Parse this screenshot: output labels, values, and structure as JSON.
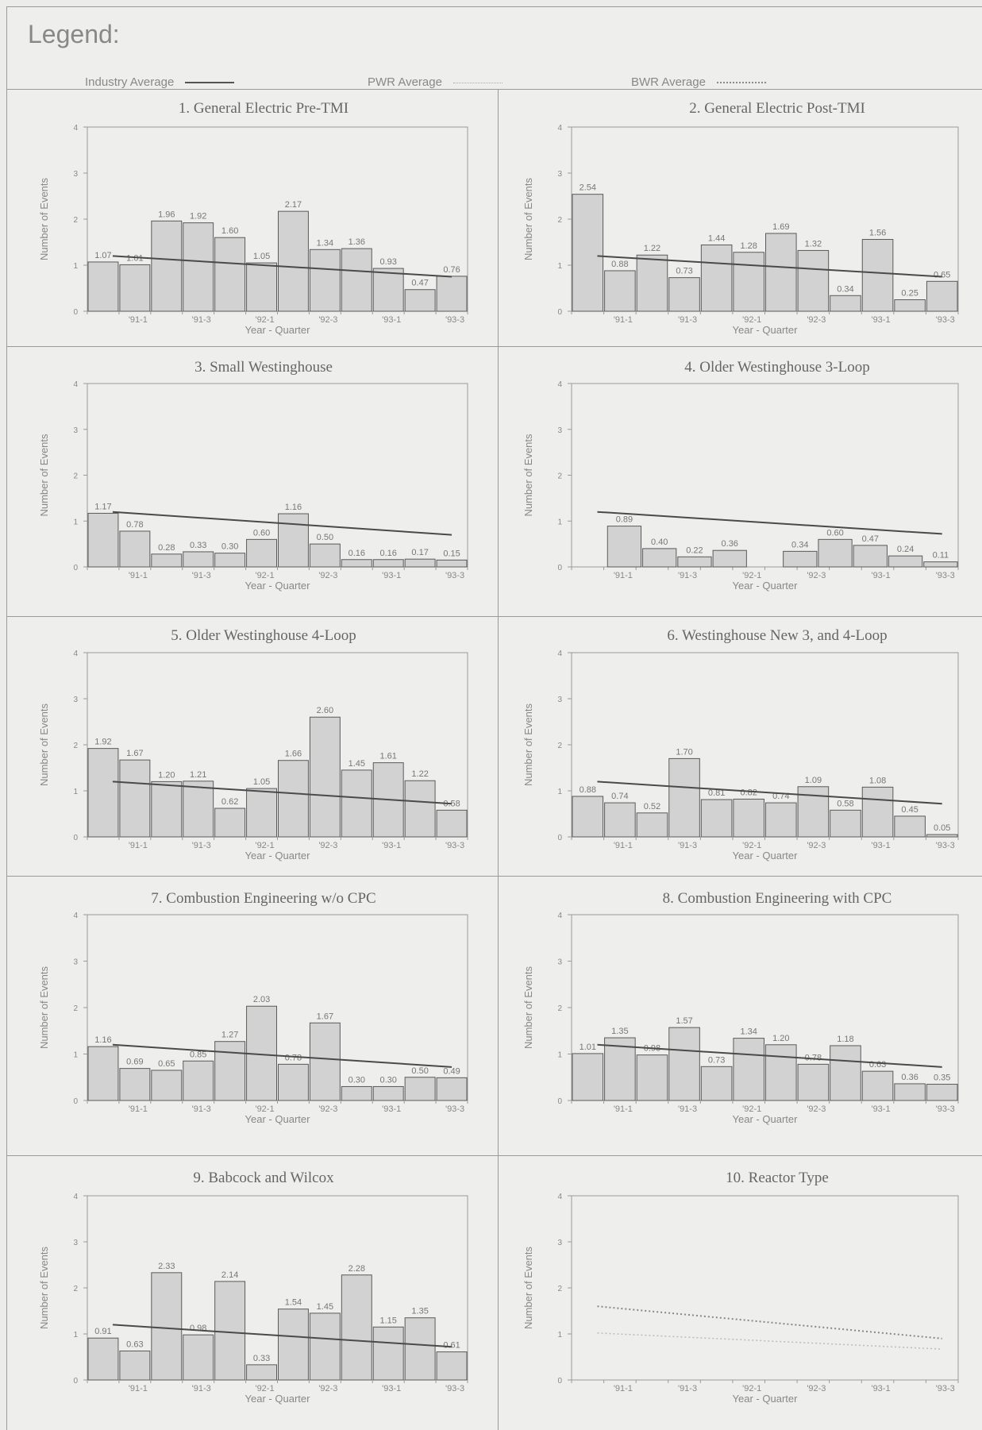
{
  "legend": {
    "title": "Legend:",
    "items": [
      {
        "label": "Industry Average",
        "style": "solid"
      },
      {
        "label": "PWR Average",
        "style": "dotted-light"
      },
      {
        "label": "BWR Average",
        "style": "dotted"
      }
    ]
  },
  "colors": {
    "bar_fill": "#d2d2d2",
    "bar_stroke": "#5a5a5a",
    "trend": "#4a4a4a",
    "frame": "#9a9a9a"
  },
  "chart_data": [
    {
      "type": "bar",
      "title": "1. General Electric Pre-TMI",
      "ylabel": "Number of Events",
      "xlabel": "Year - Quarter",
      "ylim": [
        0,
        4
      ],
      "yticks": [
        "0",
        "1",
        "2",
        "3",
        "4"
      ],
      "xticks": [
        "'91-1",
        "'91-3",
        "'92-1",
        "'92-3",
        "'93-1",
        "'93-3"
      ],
      "values": [
        1.07,
        1.01,
        1.96,
        1.92,
        1.6,
        1.05,
        2.17,
        1.34,
        1.36,
        0.93,
        0.47,
        0.76
      ],
      "value_labels": [
        "1.07",
        "1.01",
        "1.96",
        "1.92",
        "1.60",
        "1.05",
        "2.17",
        "1.34",
        "1.36",
        "0.93",
        "0.47",
        "0.76"
      ],
      "trend": [
        1.2,
        0.75
      ]
    },
    {
      "type": "bar",
      "title": "2. General Electric Post-TMI",
      "ylabel": "Number of Events",
      "xlabel": "Year - Quarter",
      "ylim": [
        0,
        4
      ],
      "yticks": [
        "0",
        "1",
        "2",
        "3",
        "4"
      ],
      "xticks": [
        "'91-1",
        "'91-3",
        "'92-1",
        "'92-3",
        "'93-1",
        "'93-3"
      ],
      "values": [
        2.54,
        0.88,
        1.22,
        0.73,
        1.44,
        1.28,
        1.69,
        1.32,
        0.34,
        1.56,
        0.25,
        0.65
      ],
      "value_labels": [
        "2.54",
        "0.88",
        "1.22",
        "0.73",
        "1.44",
        "1.28",
        "1.69",
        "1.32",
        "0.34",
        "1.56",
        "0.25",
        "0.65"
      ],
      "trend": [
        1.2,
        0.75
      ]
    },
    {
      "type": "bar",
      "title": "3. Small Westinghouse",
      "ylabel": "Number of Events",
      "xlabel": "Year - Quarter",
      "ylim": [
        0,
        4
      ],
      "yticks": [
        "0",
        "1",
        "2",
        "3",
        "4"
      ],
      "xticks": [
        "'91-1",
        "'91-3",
        "'92-1",
        "'92-3",
        "'93-1",
        "'93-3"
      ],
      "values": [
        1.17,
        0.78,
        0.28,
        0.33,
        0.3,
        0.6,
        1.16,
        0.5,
        0.16,
        0.16,
        0.17,
        0.15
      ],
      "value_labels": [
        "1.17",
        "0.78",
        "0.28",
        "0.33",
        "0.30",
        "0.60",
        "1.16",
        "0.50",
        "0.16",
        "0.16",
        "0.17",
        "0.15"
      ],
      "trend": [
        1.2,
        0.7
      ]
    },
    {
      "type": "bar",
      "title": "4. Older Westinghouse 3-Loop",
      "ylabel": "Number of Events",
      "xlabel": "Year - Quarter",
      "ylim": [
        0,
        4
      ],
      "yticks": [
        "0",
        "1",
        "2",
        "3",
        "4"
      ],
      "xticks": [
        "'91-1",
        "'91-3",
        "'92-1",
        "'92-3",
        "'93-1",
        "'93-3"
      ],
      "values": [
        0,
        0.89,
        0.4,
        0.22,
        0.36,
        0,
        0.34,
        0.6,
        0.47,
        0.24,
        0.11
      ],
      "value_labels": [
        "",
        "0.89",
        "0.40",
        "0.22",
        "0.36",
        "",
        "0.34",
        "0.60",
        "0.47",
        "0.24",
        "0.11"
      ],
      "trend": [
        1.2,
        0.72
      ]
    },
    {
      "type": "bar",
      "title": "5. Older Westinghouse 4-Loop",
      "ylabel": "Number of Events",
      "xlabel": "Year - Quarter",
      "ylim": [
        0,
        4
      ],
      "yticks": [
        "0",
        "1",
        "2",
        "3",
        "4"
      ],
      "xticks": [
        "'91-1",
        "'91-3",
        "'92-1",
        "'92-3",
        "'93-1",
        "'93-3"
      ],
      "values": [
        1.92,
        1.67,
        1.2,
        1.21,
        0.62,
        1.05,
        1.66,
        2.6,
        1.45,
        1.61,
        1.22,
        0.58
      ],
      "value_labels": [
        "1.92",
        "1.67",
        "1.20",
        "1.21",
        "0.62",
        "1.05",
        "1.66",
        "2.60",
        "1.45",
        "1.61",
        "1.22",
        "0.58"
      ],
      "trend": [
        1.2,
        0.72
      ]
    },
    {
      "type": "bar",
      "title": "6. Westinghouse New 3, and 4-Loop",
      "ylabel": "Number of Events",
      "xlabel": "Year - Quarter",
      "ylim": [
        0,
        4
      ],
      "yticks": [
        "0",
        "1",
        "2",
        "3",
        "4"
      ],
      "xticks": [
        "'91-1",
        "'91-3",
        "'92-1",
        "'92-3",
        "'93-1",
        "'93-3"
      ],
      "values": [
        0.88,
        0.74,
        0.52,
        1.7,
        0.81,
        0.82,
        0.74,
        1.09,
        0.58,
        1.08,
        0.45,
        0.05
      ],
      "value_labels": [
        "0.88",
        "0.74",
        "0.52",
        "1.70",
        "0.81",
        "0.82",
        "0.74",
        "1.09",
        "0.58",
        "1.08",
        "0.45",
        "0.05"
      ],
      "trend": [
        1.2,
        0.72
      ]
    },
    {
      "type": "bar",
      "title": "7. Combustion Engineering w/o CPC",
      "ylabel": "Number of Events",
      "xlabel": "Year - Quarter",
      "ylim": [
        0,
        4
      ],
      "yticks": [
        "0",
        "1",
        "2",
        "3",
        "4"
      ],
      "xticks": [
        "'91-1",
        "'91-3",
        "'92-1",
        "'92-3",
        "'93-1",
        "'93-3"
      ],
      "values": [
        1.16,
        0.69,
        0.65,
        0.85,
        1.27,
        2.03,
        0.78,
        1.67,
        0.3,
        0.3,
        0.5,
        0.49
      ],
      "value_labels": [
        "1.16",
        "0.69",
        "0.65",
        "0.85",
        "1.27",
        "2.03",
        "0.78",
        "1.67",
        "0.30",
        "0.30",
        "0.50",
        "0.49"
      ],
      "trend": [
        1.2,
        0.72
      ]
    },
    {
      "type": "bar",
      "title": "8. Combustion Engineering with CPC",
      "ylabel": "Number of Events",
      "xlabel": "Year - Quarter",
      "ylim": [
        0,
        4
      ],
      "yticks": [
        "0",
        "1",
        "2",
        "3",
        "4"
      ],
      "xticks": [
        "'91-1",
        "'91-3",
        "'92-1",
        "'92-3",
        "'93-1",
        "'93-3"
      ],
      "values": [
        1.01,
        1.35,
        0.98,
        1.57,
        0.73,
        1.34,
        1.2,
        0.78,
        1.18,
        0.63,
        0.36,
        0.35
      ],
      "value_labels": [
        "1.01",
        "1.35",
        "0.98",
        "1.57",
        "0.73",
        "1.34",
        "1.20",
        "0.78",
        "1.18",
        "0.63",
        "0.36",
        "0.35"
      ],
      "trend": [
        1.2,
        0.72
      ]
    },
    {
      "type": "bar",
      "title": "9. Babcock and Wilcox",
      "ylabel": "Number of Events",
      "xlabel": "Year - Quarter",
      "ylim": [
        0,
        4
      ],
      "yticks": [
        "0",
        "1",
        "2",
        "3",
        "4"
      ],
      "xticks": [
        "'91-1",
        "'91-3",
        "'92-1",
        "'92-3",
        "'93-1",
        "'93-3"
      ],
      "values": [
        0.91,
        0.63,
        2.33,
        0.98,
        2.14,
        0.33,
        1.54,
        1.45,
        2.28,
        1.15,
        1.35,
        0.61
      ],
      "value_labels": [
        "0.91",
        "0.63",
        "2.33",
        "0.98",
        "2.14",
        "0.33",
        "1.54",
        "1.45",
        "2.28",
        "1.15",
        "1.35",
        "0.61"
      ],
      "trend": [
        1.2,
        0.72
      ]
    },
    {
      "type": "line",
      "title": "10. Reactor Type",
      "ylabel": "Number of Events",
      "xlabel": "Year - Quarter",
      "ylim": [
        0,
        4
      ],
      "yticks": [
        "0",
        "1",
        "2",
        "3",
        "4"
      ],
      "xticks": [
        "'91-1",
        "'91-3",
        "'92-1",
        "'92-3",
        "'93-1",
        "'93-3"
      ],
      "values": [],
      "value_labels": [],
      "lines": [
        {
          "name": "BWR Average",
          "style": "dotted",
          "values": [
            1.6,
            0.9
          ]
        },
        {
          "name": "PWR Average",
          "style": "dotted-light",
          "values": [
            1.02,
            0.67
          ]
        }
      ]
    }
  ]
}
